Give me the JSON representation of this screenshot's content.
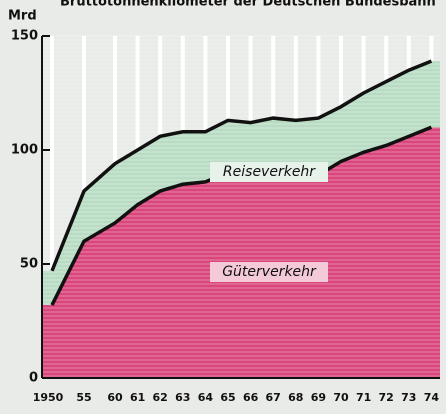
{
  "chart_data": {
    "type": "stacked_area",
    "title": "Bruttotonnenkilometer der Deutschen Bundesbahn",
    "y_label": "Mrd",
    "categories": [
      "1950",
      "55",
      "60",
      "61",
      "62",
      "63",
      "64",
      "65",
      "66",
      "67",
      "68",
      "69",
      "70",
      "71",
      "72",
      "73",
      "74"
    ],
    "series": [
      {
        "name": "Güterverkehr",
        "color": "#d9457c",
        "values": [
          32,
          60,
          68,
          76,
          82,
          85,
          86,
          90,
          89,
          91,
          88,
          89,
          95,
          99,
          102,
          106,
          110
        ]
      },
      {
        "name": "Reiseverkehr",
        "color": "#b7dcc3",
        "values": [
          15,
          22,
          26,
          24,
          24,
          23,
          22,
          23,
          23,
          23,
          25,
          25,
          24,
          26,
          28,
          29,
          29
        ]
      }
    ],
    "ylim": [
      0,
      150
    ],
    "yticks": [
      0,
      50,
      100,
      150
    ]
  }
}
